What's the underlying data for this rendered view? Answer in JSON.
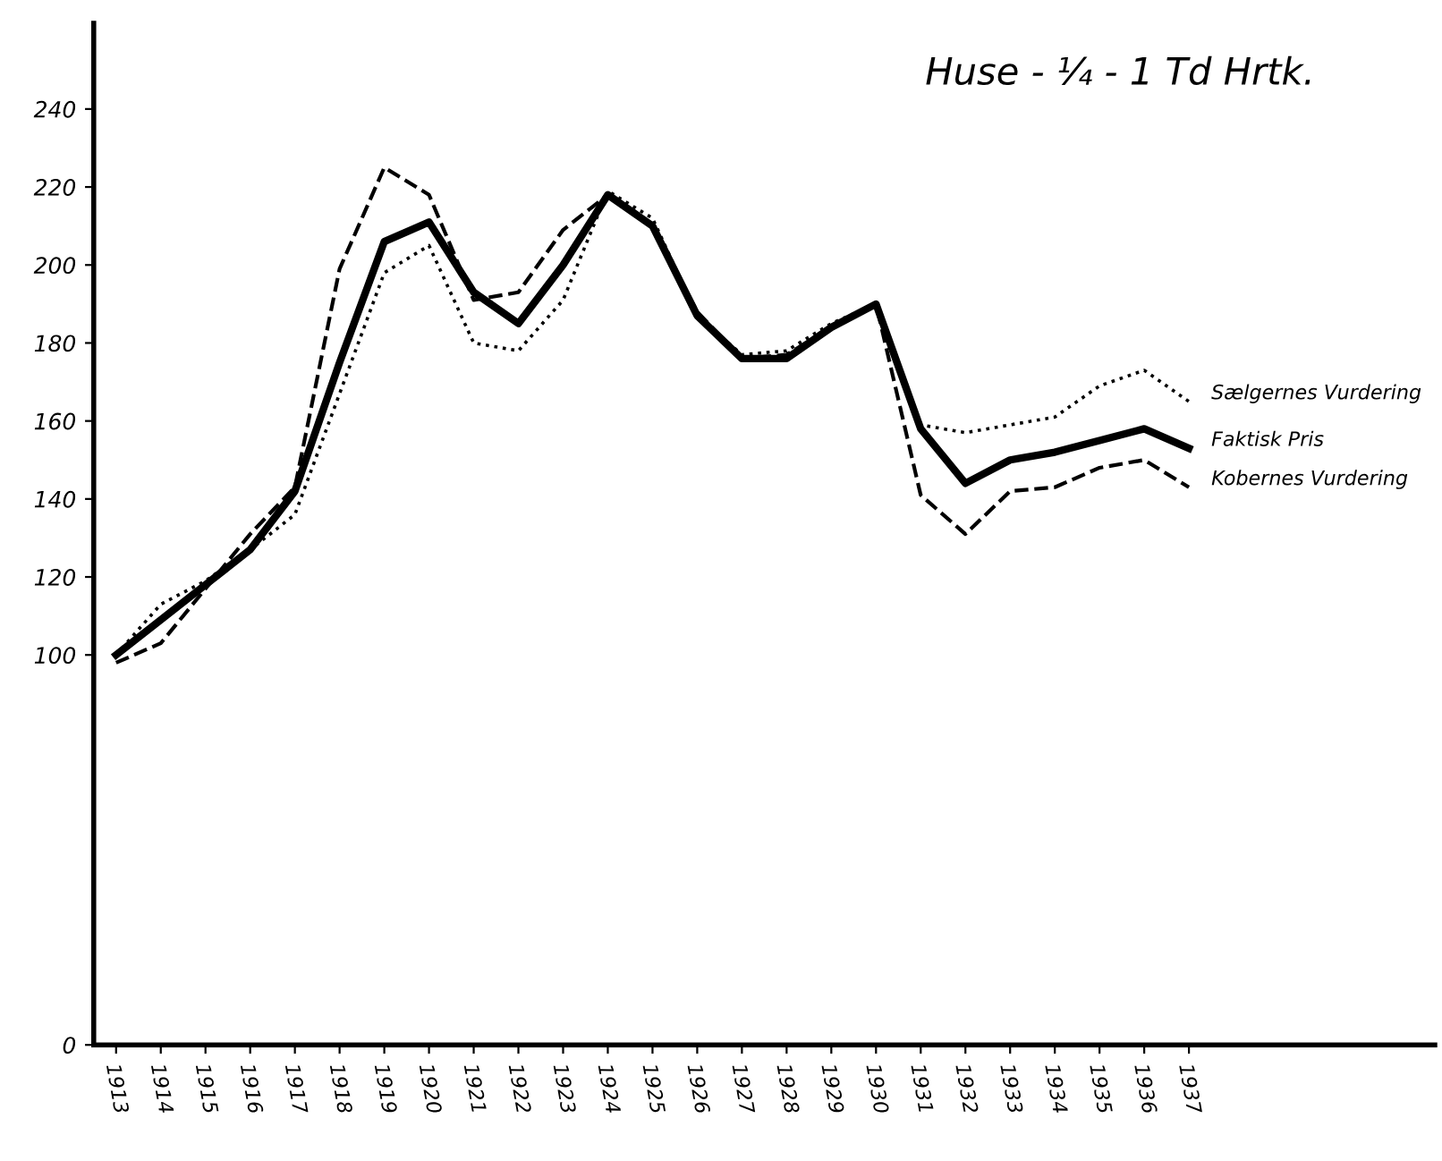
{
  "chart_data": {
    "type": "line",
    "title": "Huse - ¼ - 1 Td Hrtk.",
    "x": [
      1913,
      1914,
      1915,
      1916,
      1917,
      1918,
      1919,
      1920,
      1921,
      1922,
      1923,
      1924,
      1925,
      1926,
      1927,
      1928,
      1929,
      1930,
      1931,
      1932,
      1933,
      1934,
      1935,
      1936,
      1937
    ],
    "series": [
      {
        "name": "Sælgernes Vurdering",
        "color": "#000000",
        "line_style": "dotted",
        "values": [
          100,
          113,
          119,
          127,
          136,
          167,
          198,
          205,
          180,
          178,
          191,
          219,
          212,
          187,
          177,
          178,
          185,
          190,
          159,
          157,
          159,
          161,
          169,
          173,
          165
        ]
      },
      {
        "name": "Faktisk Pris",
        "color": "#000000",
        "line_style": "solid",
        "values": [
          100,
          109,
          118,
          127,
          142,
          175,
          206,
          211,
          193,
          185,
          200,
          218,
          210,
          187,
          176,
          176,
          184,
          190,
          158,
          144,
          150,
          152,
          155,
          158,
          153
        ]
      },
      {
        "name": "Kobernes Vurdering",
        "color": "#000000",
        "line_style": "dashed",
        "values": [
          98,
          103,
          117,
          131,
          143,
          199,
          225,
          218,
          191,
          193,
          209,
          218,
          210,
          188,
          176,
          177,
          184,
          190,
          141,
          131,
          142,
          143,
          148,
          150,
          143
        ]
      }
    ],
    "xlim": [
      1912.5,
      1942.5
    ],
    "xticks": [
      1913,
      1914,
      1915,
      1916,
      1917,
      1918,
      1919,
      1920,
      1921,
      1922,
      1923,
      1924,
      1925,
      1926,
      1927,
      1928,
      1929,
      1930,
      1931,
      1932,
      1933,
      1934,
      1935,
      1936,
      1937
    ],
    "ylim": [
      0,
      262
    ],
    "yticks": [
      0,
      100,
      120,
      140,
      160,
      180,
      200,
      220,
      240
    ],
    "grid": false,
    "legend": false,
    "marker": "none"
  }
}
